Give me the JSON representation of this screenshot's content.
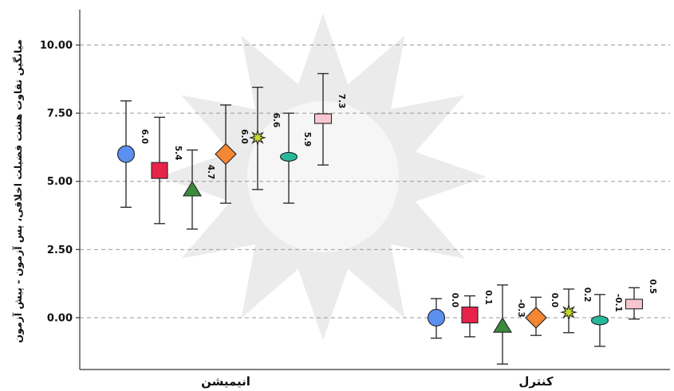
{
  "chart_data": {
    "type": "scatter",
    "title": "",
    "ylabel": "میانگین تفاوت هشت فضیلت اخلاقی، پس آزمون - پیش آزمون",
    "xlabel": "",
    "ylim": [
      -1.9,
      11.3
    ],
    "yticks": [
      "0.00",
      "2.50",
      "5.00",
      "7.50",
      "10.00"
    ],
    "ytick_values": [
      0,
      2.5,
      5,
      7.5,
      10
    ],
    "grid": true,
    "groups": [
      {
        "name": "انیمیشن",
        "points": [
          {
            "value": 6.0,
            "label": "6.0",
            "low": 4.05,
            "high": 7.95,
            "marker": "circle",
            "color": "#5b8ff0"
          },
          {
            "value": 5.4,
            "label": "5.4",
            "low": 3.45,
            "high": 7.35,
            "marker": "square",
            "color": "#e8234a"
          },
          {
            "value": 4.7,
            "label": "4.7",
            "low": 3.25,
            "high": 6.15,
            "marker": "triangle",
            "color": "#3a8a3c"
          },
          {
            "value": 6.0,
            "label": "6.0",
            "low": 4.2,
            "high": 7.8,
            "marker": "diamond",
            "color": "#f58634"
          },
          {
            "value": 6.6,
            "label": "6.6",
            "low": 4.7,
            "high": 8.45,
            "marker": "star",
            "color": "#c6d82c"
          },
          {
            "value": 5.9,
            "label": "5.9",
            "low": 4.2,
            "high": 7.5,
            "marker": "ellipse",
            "color": "#27b89a"
          },
          {
            "value": 7.3,
            "label": "7.3",
            "low": 5.6,
            "high": 8.95,
            "marker": "rect",
            "color": "#f8c6d0"
          }
        ]
      },
      {
        "name": "کنترل",
        "points": [
          {
            "value": 0.0,
            "label": "0.0",
            "low": -0.75,
            "high": 0.7,
            "marker": "circle",
            "color": "#5b8ff0"
          },
          {
            "value": 0.1,
            "label": "0.1",
            "low": -0.7,
            "high": 0.8,
            "marker": "square",
            "color": "#e8234a"
          },
          {
            "value": -0.3,
            "label": "-0.3",
            "low": -1.7,
            "high": 1.2,
            "marker": "triangle",
            "color": "#3a8a3c"
          },
          {
            "value": 0.0,
            "label": "0.0",
            "low": -0.65,
            "high": 0.75,
            "marker": "diamond",
            "color": "#f58634"
          },
          {
            "value": 0.2,
            "label": "0.2",
            "low": -0.55,
            "high": 1.05,
            "marker": "star",
            "color": "#c6d82c"
          },
          {
            "value": -0.1,
            "label": "-0.1",
            "low": -1.05,
            "high": 0.85,
            "marker": "ellipse",
            "color": "#27b89a"
          },
          {
            "value": 0.5,
            "label": "0.5",
            "low": -0.05,
            "high": 1.1,
            "marker": "rect",
            "color": "#f8c6d0"
          }
        ]
      }
    ]
  }
}
